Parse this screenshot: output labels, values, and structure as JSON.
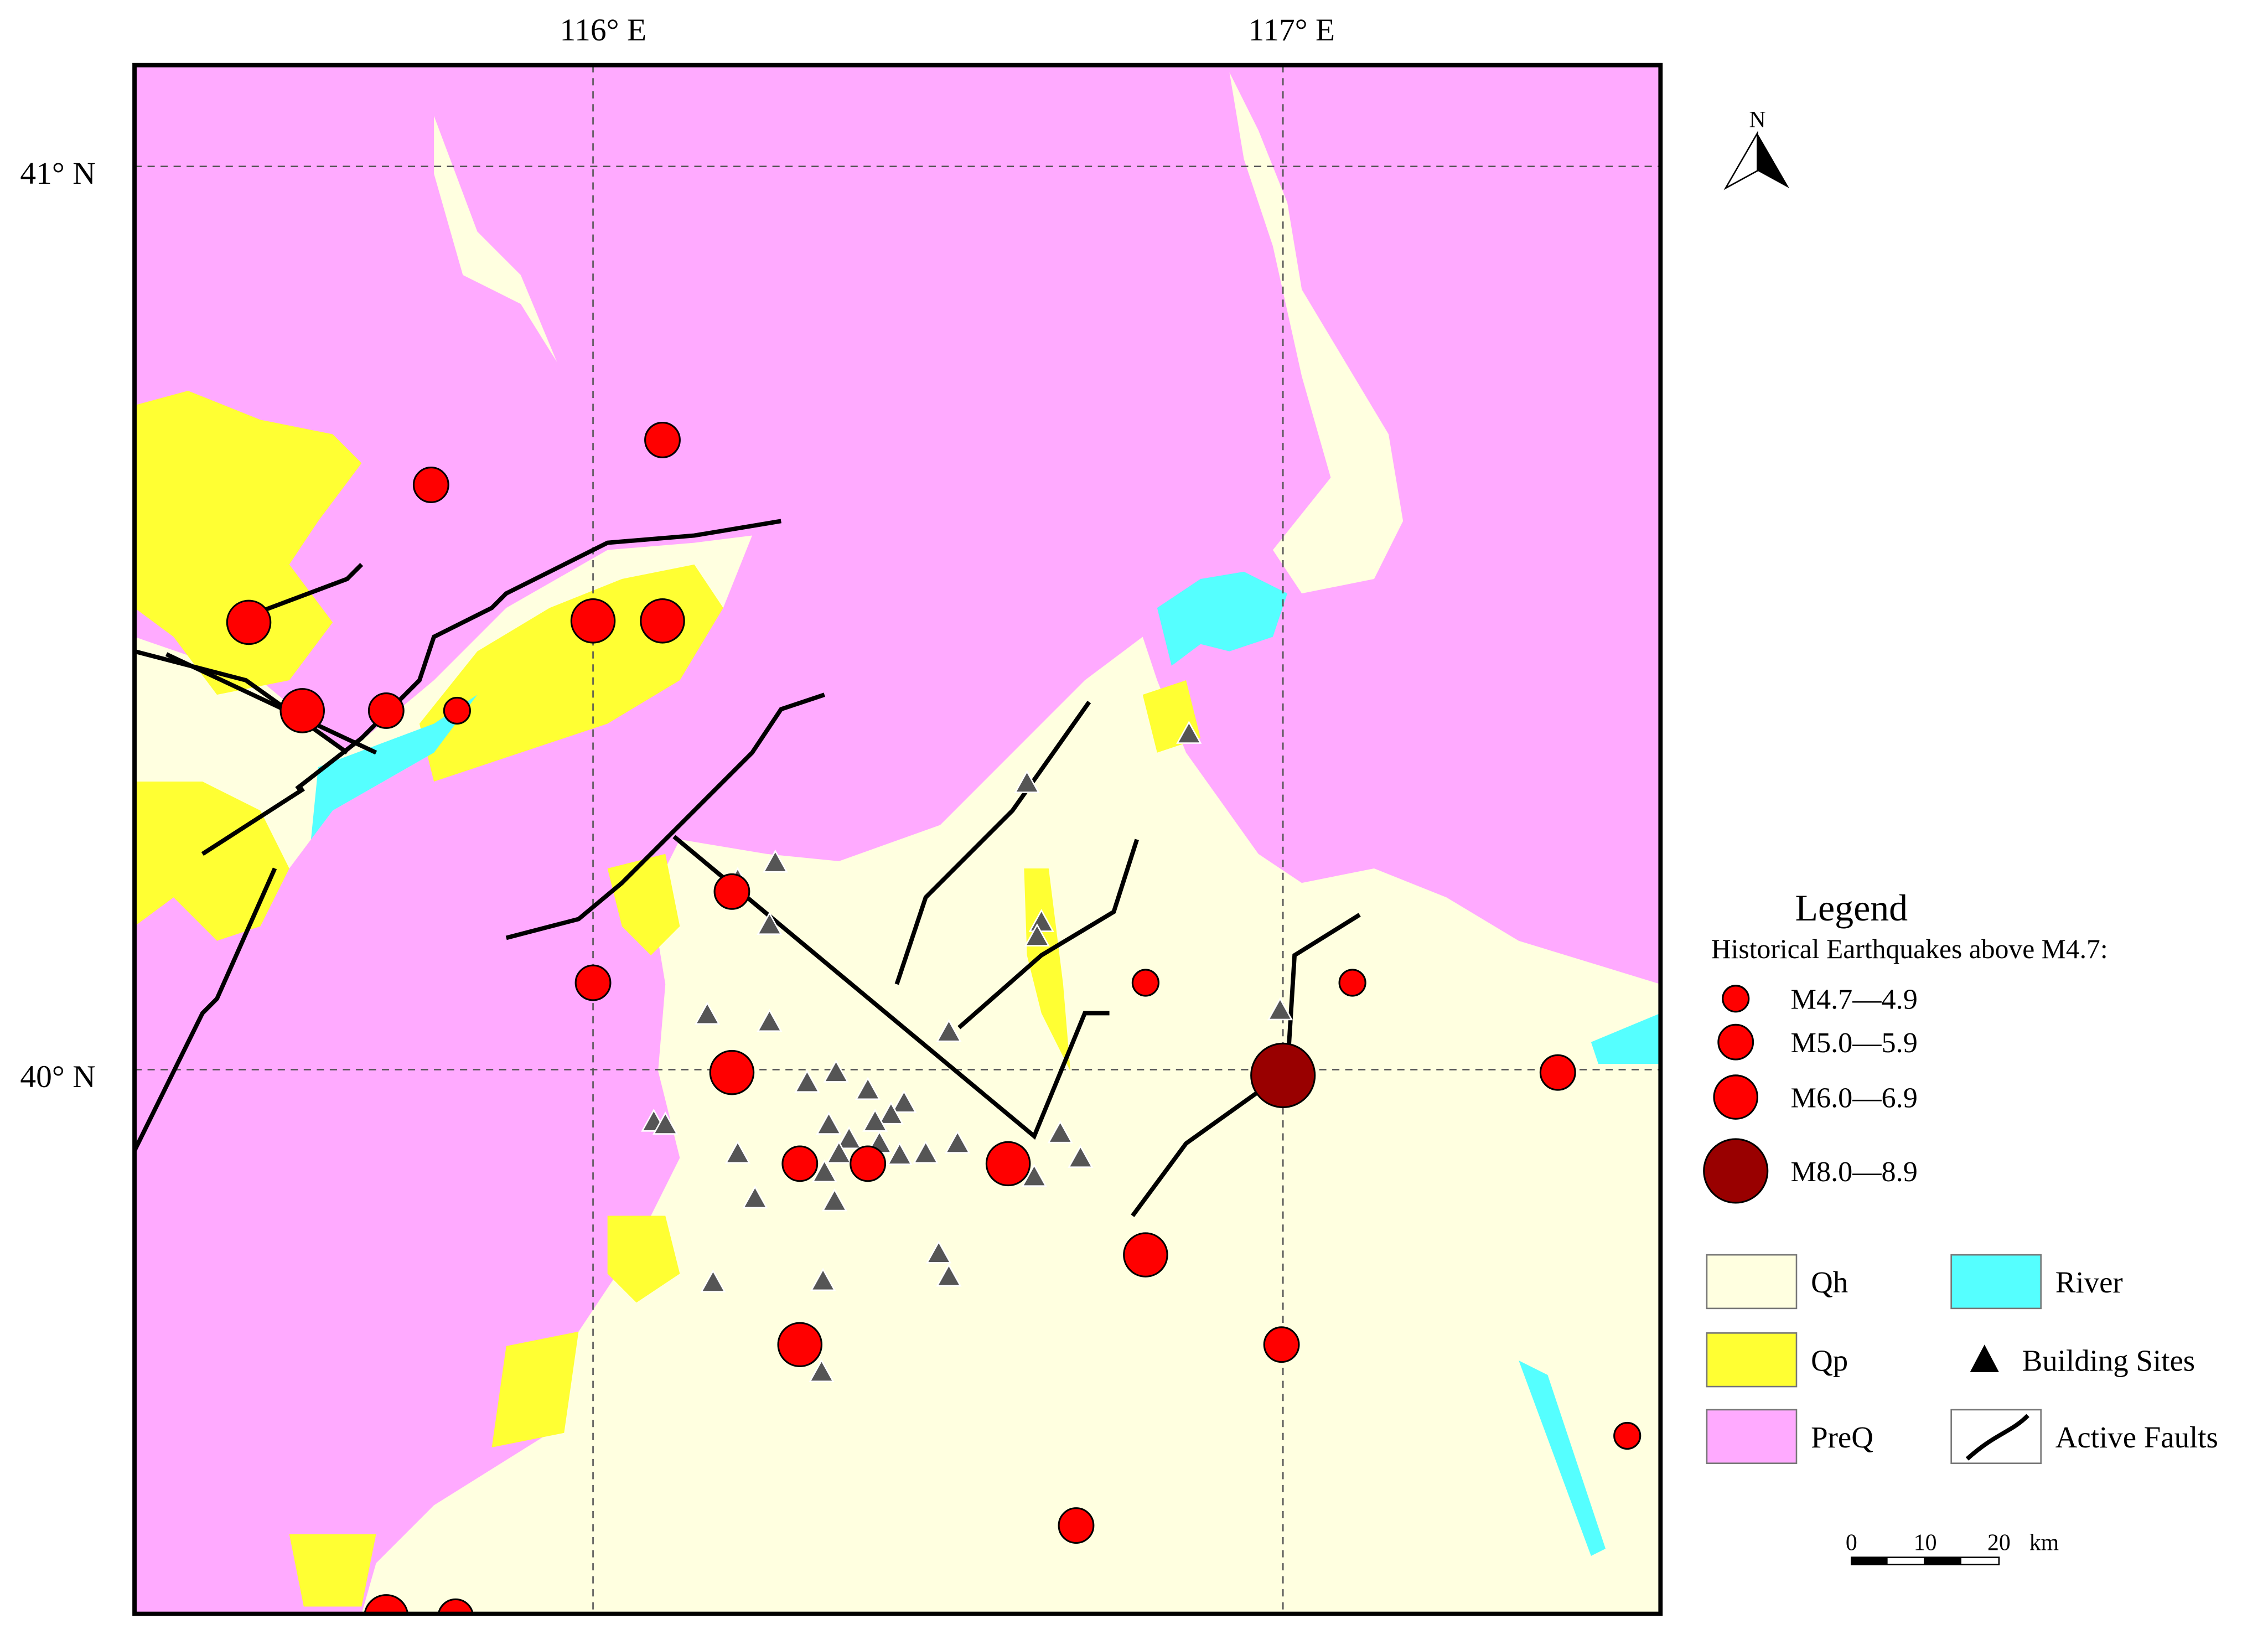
{
  "map": {
    "graticule": {
      "lon": [
        "116° E",
        "117° E"
      ],
      "lat": [
        "41° N",
        "40° N"
      ]
    },
    "north": "N",
    "legend": {
      "title": "Legend",
      "subtitle": "Historical Earthquakes above M4.7:",
      "earthquakes": [
        "M4.7—4.9",
        "M5.0—5.9",
        "M6.0—6.9",
        "M8.0—8.9"
      ],
      "units": [
        {
          "name": "Qh",
          "color": "#ffffe0"
        },
        {
          "name": "Qp",
          "color": "#ffff33"
        },
        {
          "name": "PreQ",
          "color": "#ffaaff"
        }
      ],
      "features": [
        "River",
        "Building Sites",
        "Active Faults"
      ]
    },
    "scale": {
      "ticks": [
        "0",
        "10",
        "20"
      ],
      "unit": "km"
    }
  }
}
